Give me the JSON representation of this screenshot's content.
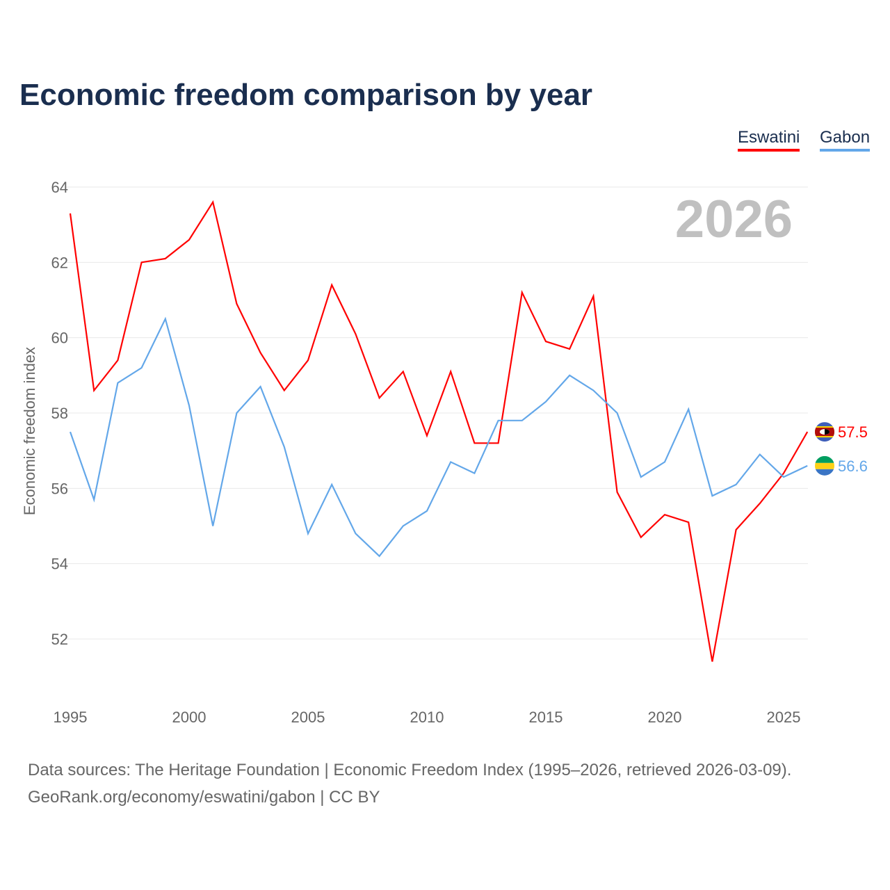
{
  "chart_data": {
    "type": "line",
    "title": "Economic freedom comparison by year",
    "xlabel": "",
    "ylabel": "Economic freedom index",
    "year_watermark": "2026",
    "x": [
      1995,
      1996,
      1997,
      1998,
      1999,
      2000,
      2001,
      2002,
      2003,
      2004,
      2005,
      2006,
      2007,
      2008,
      2009,
      2010,
      2011,
      2012,
      2013,
      2014,
      2015,
      2016,
      2017,
      2018,
      2019,
      2020,
      2021,
      2022,
      2023,
      2024,
      2025,
      2026
    ],
    "xticks": [
      1995,
      2000,
      2005,
      2010,
      2015,
      2020,
      2025
    ],
    "yticks": [
      52,
      54,
      56,
      58,
      60,
      62,
      64
    ],
    "xlim": [
      1995,
      2026
    ],
    "ylim": [
      50.2,
      64.4
    ],
    "grid": true,
    "legend_position": "top-right",
    "series": [
      {
        "name": "Eswatini",
        "color": "#ff0000",
        "end_label": "57.5",
        "values": [
          63.3,
          58.6,
          59.4,
          62.0,
          62.1,
          62.6,
          63.6,
          60.9,
          59.6,
          58.6,
          59.4,
          61.4,
          60.1,
          58.4,
          59.1,
          57.4,
          59.1,
          57.2,
          57.2,
          61.2,
          59.9,
          59.7,
          61.1,
          55.9,
          54.7,
          55.3,
          55.1,
          51.4,
          54.9,
          55.6,
          56.4,
          57.5
        ]
      },
      {
        "name": "Gabon",
        "color": "#63a7e9",
        "end_label": "56.6",
        "values": [
          57.5,
          55.7,
          58.8,
          59.2,
          60.5,
          58.2,
          55.0,
          58.0,
          58.7,
          57.1,
          54.8,
          56.1,
          54.8,
          54.2,
          55.0,
          55.4,
          56.7,
          56.4,
          57.8,
          57.8,
          58.3,
          59.0,
          58.6,
          58.0,
          56.3,
          56.7,
          58.1,
          55.8,
          56.1,
          56.9,
          56.3,
          56.6
        ]
      }
    ]
  },
  "source_line1": "Data sources: The Heritage Foundation | Economic Freedom Index (1995–2026, retrieved 2026-03-09).",
  "source_line2": "GeoRank.org/economy/eswatini/gabon | CC BY"
}
